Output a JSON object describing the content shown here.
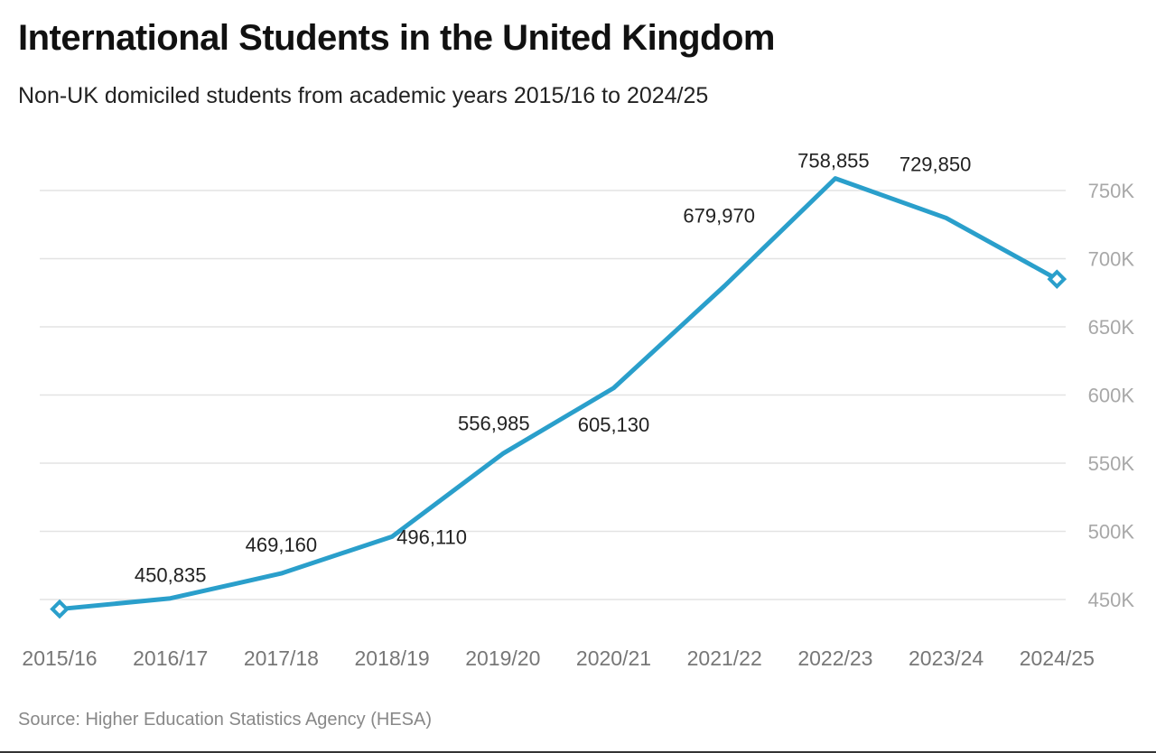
{
  "chart_data": {
    "type": "line",
    "title": "International Students in the United Kingdom",
    "subtitle": "Non-UK domiciled students from academic years 2015/16 to 2024/25",
    "source": "Source: Higher Education Statistics Agency (HESA)",
    "categories": [
      "2015/16",
      "2016/17",
      "2017/18",
      "2018/19",
      "2019/20",
      "2020/21",
      "2021/22",
      "2022/23",
      "2023/24",
      "2024/25"
    ],
    "series": [
      {
        "values": [
          443000,
          450835,
          469160,
          496110,
          556985,
          605130,
          679970,
          758855,
          729850,
          685000
        ],
        "data_labels": [
          "",
          "450,835",
          "469,160",
          "496,110",
          "556,985",
          "605,130",
          "679,970",
          "758,855",
          "729,850",
          ""
        ],
        "color": "#2a9fcb"
      }
    ],
    "y_ticks": [
      {
        "value": 450000,
        "label": "450K"
      },
      {
        "value": 500000,
        "label": "500K"
      },
      {
        "value": 550000,
        "label": "550K"
      },
      {
        "value": 600000,
        "label": "600K"
      },
      {
        "value": 650000,
        "label": "650K"
      },
      {
        "value": 700000,
        "label": "700K"
      },
      {
        "value": 750000,
        "label": "750K"
      }
    ],
    "ylim": [
      450000,
      750000
    ],
    "y_axis_side": "right",
    "grid": true,
    "legend": false,
    "end_markers": "hollow-diamond"
  }
}
